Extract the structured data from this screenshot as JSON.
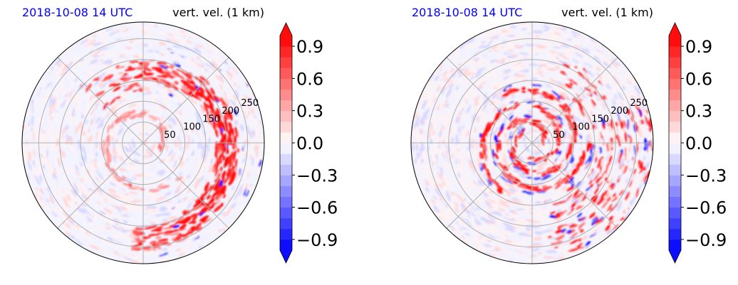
{
  "chart_data": [
    {
      "type": "heatmap",
      "projection": "polar",
      "title_left": "2018-10-08 14 UTC",
      "title_right": "vert. vel. (1 km)",
      "radial_tick_labels": [
        "50",
        "100",
        "150",
        "200",
        "250"
      ],
      "radial_ticks": [
        50,
        100,
        150,
        200,
        250
      ],
      "r_max": 290,
      "azimuth_gridlines_deg": [
        0,
        45,
        90,
        135,
        180,
        225,
        270,
        315
      ],
      "grid": true,
      "pattern": "asymmetric rainband arc to the east/northeast with strongest updrafts (>0.9) between r=120 and r=250 on the east side; weak diffuse values elsewhere"
    },
    {
      "type": "heatmap",
      "projection": "polar",
      "title_left": "2018-10-08 14 UTC",
      "title_right": "vert. vel. (1 km)",
      "radial_tick_labels": [
        "50",
        "100",
        "150",
        "200",
        "250"
      ],
      "radial_ticks": [
        50,
        100,
        150,
        200,
        250
      ],
      "r_max": 290,
      "azimuth_gridlines_deg": [
        0,
        45,
        90,
        135,
        180,
        225,
        270,
        315
      ],
      "grid": true,
      "pattern": "tight spiral bands wrapping the center within r=100, additional strong cells to the east and southeast"
    }
  ],
  "colorbar": {
    "tick_labels": [
      "0.9",
      "0.6",
      "0.3",
      "0.0",
      "−0.3",
      "−0.6",
      "−0.9"
    ],
    "ticks": [
      0.9,
      0.6,
      0.3,
      0.0,
      -0.3,
      -0.6,
      -0.9
    ],
    "range": [
      -1.0,
      1.0
    ],
    "levels": 20,
    "extend": "both",
    "colormap": "bwr",
    "low_color": "#0000ff",
    "mid_color": "#ffffff",
    "high_color": "#ff0000"
  }
}
